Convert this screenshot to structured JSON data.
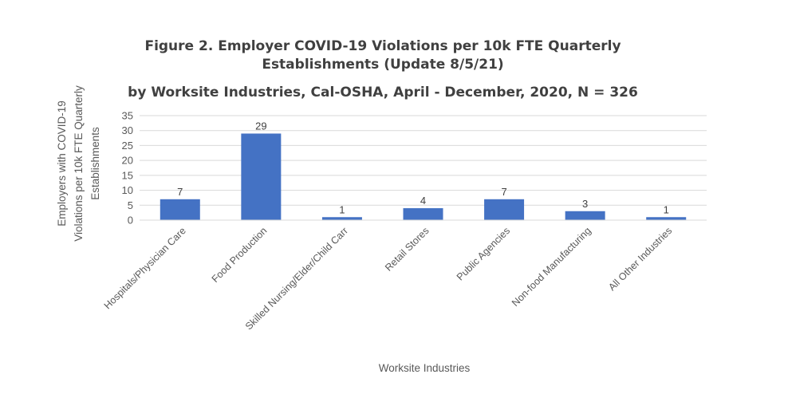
{
  "chart_data": {
    "type": "bar",
    "title": [
      "Figure 2. Employer COVID-19 Violations per 10k FTE Quarterly",
      "Establishments (Update 8/5/21)",
      "by Worksite Industries, Cal-OSHA, April - December, 2020, N = 326"
    ],
    "categories": [
      "Hospitals/Physician Care",
      "Food Production",
      "Skilled Nursing/Elder/Child Carr",
      "Retail Stores",
      "Public Agencies",
      "Non-food Manufacturing",
      "All Other Industries"
    ],
    "values": [
      7,
      29,
      1,
      4,
      7,
      3,
      1
    ],
    "data_labels": [
      "7",
      "29",
      "1",
      "4",
      "7",
      "3",
      "1"
    ],
    "xlabel": "Worksite Industries",
    "ylabel": [
      "Employers with COVID-19",
      "Violations per 10k FTE Quarterly",
      "Establishments"
    ],
    "ylim": [
      0,
      35
    ],
    "yticks": [
      0,
      5,
      10,
      15,
      20,
      25,
      30,
      35
    ],
    "grid": true,
    "legend": "none",
    "bar_color": "#4472C4",
    "grid_color": "#D9D9D9"
  }
}
